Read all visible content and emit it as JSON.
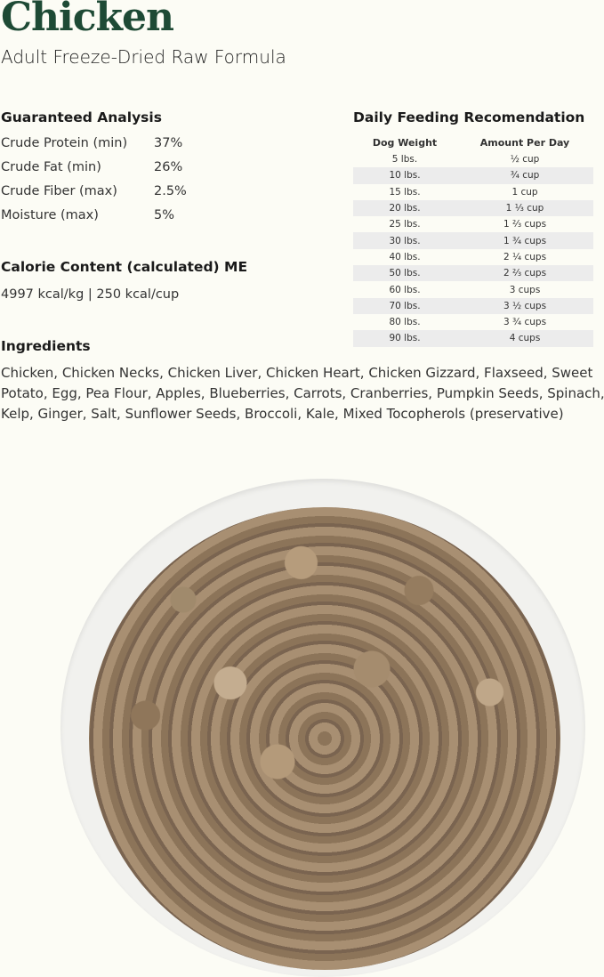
{
  "title": "Chicken",
  "subtitle": "Adult Freeze-Dried Raw Formula",
  "analysis": {
    "heading": "Guaranteed Analysis",
    "rows": [
      {
        "label": "Crude Protein (min)",
        "value": "37%"
      },
      {
        "label": "Crude Fat (min)",
        "value": "26%"
      },
      {
        "label": "Crude Fiber (max)",
        "value": "2.5%"
      },
      {
        "label": "Moisture (max)",
        "value": "5%"
      }
    ]
  },
  "calorie": {
    "heading": "Calorie Content (calculated) ME",
    "text": "4997 kcal/kg | 250 kcal/cup"
  },
  "ingredients": {
    "heading": "Ingredients",
    "text": "Chicken, Chicken Necks, Chicken Liver, Chicken Heart, Chicken Gizzard, Flaxseed, Sweet Potato, Egg, Pea Flour, Apples, Blueberries, Carrots, Cranberries, Pumpkin Seeds, Spinach, Kelp, Ginger, Salt, Sunflower Seeds, Broccoli, Kale, Mixed Tocopherols (preservative)"
  },
  "feeding": {
    "heading": "Daily Feeding Recomendation",
    "columns": [
      "Dog Weight",
      "Amount Per Day"
    ],
    "rows": [
      [
        "5 lbs.",
        "½ cup"
      ],
      [
        "10 lbs.",
        "¾ cup"
      ],
      [
        "15 lbs.",
        "1 cup"
      ],
      [
        "20 lbs.",
        "1 ⅓ cup"
      ],
      [
        "25 lbs.",
        "1 ⅔ cups"
      ],
      [
        "30 lbs.",
        "1 ¾ cups"
      ],
      [
        "40 lbs.",
        "2 ¼ cups"
      ],
      [
        "50 lbs.",
        "2 ⅔ cups"
      ],
      [
        "60 lbs.",
        "3 cups"
      ],
      [
        "70 lbs.",
        "3 ½ cups"
      ],
      [
        "80 lbs.",
        "3 ¾ cups"
      ],
      [
        "90 lbs.",
        "4 cups"
      ]
    ]
  },
  "colors": {
    "title": "#1e4a35",
    "background": "#fcfcf5"
  }
}
